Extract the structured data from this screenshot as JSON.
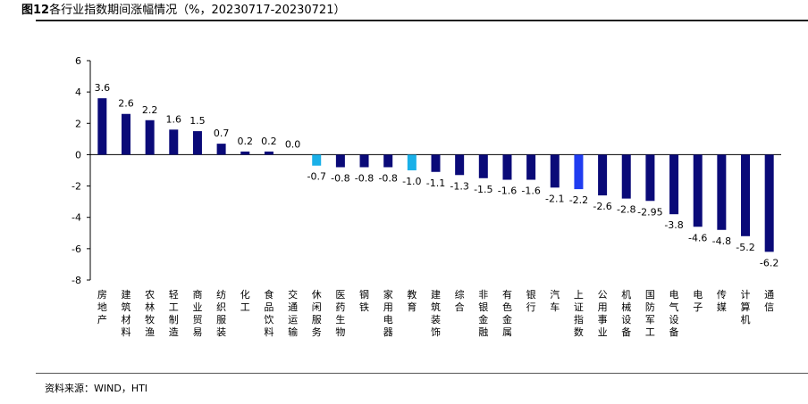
{
  "header": {
    "title_prefix": "图12",
    "title_text": "各行业指数期间涨幅情况（%，20230717-20230721）"
  },
  "footer": {
    "source": "资料来源：WIND，HTI"
  },
  "colors": {
    "primary_bar": "#0a0a78",
    "highlight_bar": "#1ab0e8",
    "index_bar": "#1f3cf0"
  },
  "chart_data": {
    "type": "bar",
    "ylim": [
      -8,
      6
    ],
    "yticks": [
      6,
      4,
      2,
      0,
      -2,
      -4,
      -6,
      -8
    ],
    "grid": false,
    "categories": [
      "房地产",
      "建筑材料",
      "农林牧渔",
      "轻工制造",
      "商业贸易",
      "纺织服装",
      "化工",
      "食品饮料",
      "交通运输",
      "休闲服务",
      "医药生物",
      "钢铁",
      "家用电器",
      "教育",
      "建筑装饰",
      "综合",
      "非银金融",
      "有色金属",
      "银行",
      "汽车",
      "上证指数",
      "公用事业",
      "机械设备",
      "国防军工",
      "电气设备",
      "电子",
      "传媒",
      "计算机",
      "通信"
    ],
    "values": [
      3.6,
      2.6,
      2.2,
      1.6,
      1.5,
      0.7,
      0.2,
      0.2,
      0.0,
      -0.7,
      -0.8,
      -0.8,
      -0.8,
      -1.0,
      -1.1,
      -1.3,
      -1.5,
      -1.6,
      -1.6,
      -2.1,
      -2.2,
      -2.6,
      -2.8,
      -2.95,
      -3.8,
      -4.6,
      -4.8,
      -5.2,
      -6.2
    ],
    "value_labels": [
      "3.6",
      "2.6",
      "2.2",
      "1.6",
      "1.5",
      "0.7",
      "0.2",
      "0.2",
      "0.0",
      "-0.7",
      "-0.8",
      "-0.8",
      "-0.8",
      "-1.0",
      "-1.1",
      "-1.3",
      "-1.5",
      "-1.6",
      "-1.6",
      "-2.1",
      "-2.2",
      "-2.6",
      "-2.8",
      "-2.95",
      "-3.8",
      "-4.6",
      "-4.8",
      "-5.2",
      "-6.2"
    ],
    "bar_colors": [
      "primary",
      "primary",
      "primary",
      "primary",
      "primary",
      "primary",
      "primary",
      "primary",
      "primary",
      "highlight",
      "primary",
      "primary",
      "primary",
      "highlight",
      "primary",
      "primary",
      "primary",
      "primary",
      "primary",
      "primary",
      "index",
      "primary",
      "primary",
      "primary",
      "primary",
      "primary",
      "primary",
      "primary",
      "primary"
    ]
  }
}
